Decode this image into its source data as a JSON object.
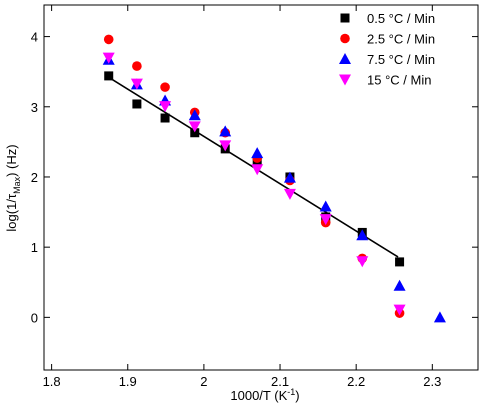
{
  "chart_data": {
    "type": "scatter",
    "x_label": [
      "1000/T (K",
      "-1",
      ")"
    ],
    "y_label": [
      "log(1/τ",
      "Max",
      ") (Hz)"
    ],
    "xlim": [
      1.79,
      2.36
    ],
    "ylim": [
      -0.75,
      4.45
    ],
    "xticks": [
      1.8,
      1.9,
      2.0,
      2.1,
      2.2,
      2.3
    ],
    "yticks": [
      0,
      1,
      2,
      3,
      4
    ],
    "legend": "top-right",
    "series": [
      {
        "name": "0.5 °C / Min",
        "color": "#000000",
        "marker": "square",
        "x": [
          1.875,
          1.912,
          1.949,
          1.988,
          2.028,
          2.07,
          2.113,
          2.16,
          2.208,
          2.257
        ],
        "values": [
          3.44,
          3.04,
          2.84,
          2.63,
          2.4,
          2.24,
          2.0,
          1.43,
          1.21,
          0.79
        ]
      },
      {
        "name": "2.5 °C / Min",
        "color": "#ff0000",
        "marker": "circle",
        "x": [
          1.875,
          1.912,
          1.949,
          1.988,
          2.028,
          2.07,
          2.113,
          2.16,
          2.208,
          2.257
        ],
        "values": [
          3.96,
          3.58,
          3.28,
          2.92,
          2.63,
          2.27,
          1.95,
          1.35,
          0.84,
          0.06
        ]
      },
      {
        "name": "7.5 °C / Min",
        "color": "#0000ff",
        "marker": "triangle-up",
        "x": [
          1.875,
          1.912,
          1.949,
          1.988,
          2.028,
          2.07,
          2.113,
          2.16,
          2.208,
          2.257,
          2.31
        ],
        "values": [
          3.67,
          3.32,
          3.09,
          2.88,
          2.65,
          2.34,
          1.99,
          1.58,
          1.17,
          0.45,
          0.0
        ]
      },
      {
        "name": "15 °C / Min",
        "color": "#ff00ff",
        "marker": "triangle-down",
        "x": [
          1.875,
          1.912,
          1.949,
          1.988,
          2.028,
          2.07,
          2.113,
          2.16,
          2.208,
          2.257
        ],
        "values": [
          3.7,
          3.33,
          3.01,
          2.72,
          2.45,
          2.11,
          1.76,
          1.4,
          0.8,
          0.11
        ]
      }
    ],
    "fit_line": {
      "color": "#000000",
      "x": [
        1.875,
        2.255
      ],
      "values": [
        3.42,
        0.86
      ]
    }
  }
}
